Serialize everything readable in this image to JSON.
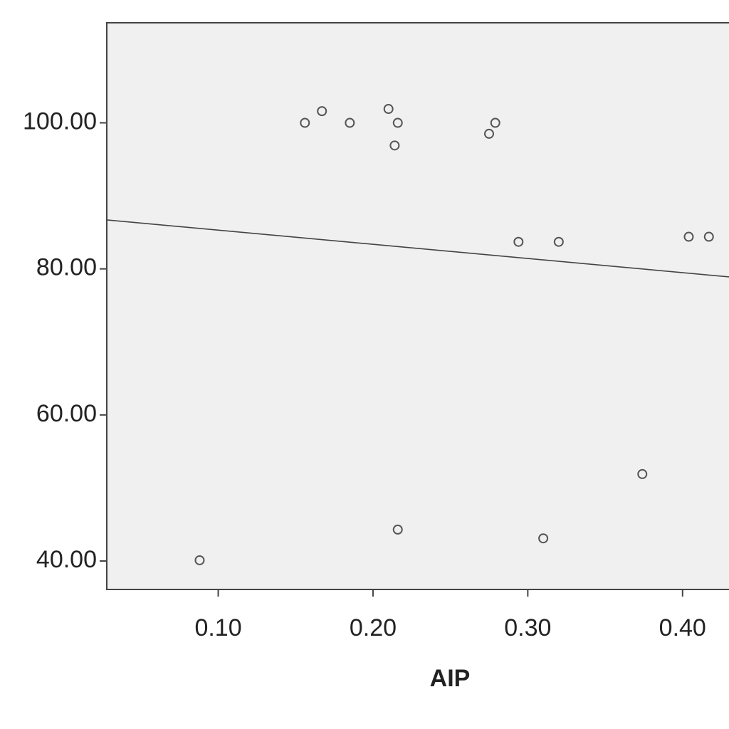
{
  "chart_data": {
    "type": "scatter",
    "x_label": "AIP",
    "x": [
      0.156,
      0.167,
      0.185,
      0.21,
      0.216,
      0.214,
      0.275,
      0.279,
      0.294,
      0.32,
      0.404,
      0.417,
      0.374,
      0.216,
      0.31,
      0.088
    ],
    "values": [
      100,
      101.6,
      100,
      101.9,
      100,
      96.9,
      98.5,
      100,
      83.7,
      83.7,
      84.4,
      84.4,
      51.9,
      44.3,
      43.1,
      40.1
    ],
    "color": "#555555",
    "fit_line": {
      "x": [
        0.028,
        0.43
      ],
      "y": [
        86.7,
        78.9
      ],
      "color": "#444444"
    },
    "xlim": [
      0.028,
      0.43
    ],
    "ylim": [
      36.1,
      113.7
    ],
    "xticks": [
      {
        "value": 0.1,
        "label": "0.10"
      },
      {
        "value": 0.2,
        "label": "0.20"
      },
      {
        "value": 0.3,
        "label": "0.30"
      },
      {
        "value": 0.4,
        "label": "0.40"
      }
    ],
    "yticks": [
      {
        "value": 40,
        "label": "40.00"
      },
      {
        "value": 60,
        "label": "60.00"
      },
      {
        "value": 80,
        "label": "80.00"
      },
      {
        "value": 100,
        "label": "100.00"
      }
    ],
    "plot_background": "#f0f0f0"
  }
}
